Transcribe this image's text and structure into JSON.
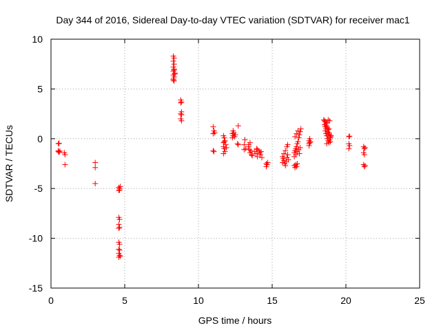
{
  "chart_data": {
    "type": "scatter",
    "title": "Day 344 of 2016, Sidereal Day-to-day VTEC variation (SDTVAR) for receiver mac1",
    "xlabel": "GPS time / hours",
    "ylabel": "SDTVAR / TECUs",
    "xlim": [
      0,
      25
    ],
    "ylim": [
      -15,
      10
    ],
    "xticks": [
      0,
      5,
      10,
      15,
      20,
      25
    ],
    "yticks": [
      -15,
      -10,
      -5,
      0,
      5,
      10
    ],
    "xtick_labels": [
      "0",
      "5",
      "10",
      "15",
      "20",
      "25"
    ],
    "ytick_labels": [
      "-15",
      "-10",
      "-5",
      "0",
      "5",
      "10"
    ],
    "grid": true,
    "marker": "plus",
    "color": "#ff0000",
    "series": [
      {
        "name": "SDTVAR",
        "points": [
          [
            0.5,
            -0.5
          ],
          [
            0.55,
            -0.45
          ],
          [
            0.5,
            -1.2
          ],
          [
            0.55,
            -1.35
          ],
          [
            0.5,
            -1.3
          ],
          [
            0.6,
            -1.25
          ],
          [
            0.9,
            -1.4
          ],
          [
            0.95,
            -1.6
          ],
          [
            0.95,
            -2.6
          ],
          [
            3.0,
            -2.4
          ],
          [
            3.0,
            -2.9
          ],
          [
            3.0,
            -4.5
          ],
          [
            4.6,
            -4.9
          ],
          [
            4.65,
            -5.0
          ],
          [
            4.6,
            -5.2
          ],
          [
            4.7,
            -4.8
          ],
          [
            4.65,
            -5.15
          ],
          [
            4.6,
            -7.9
          ],
          [
            4.65,
            -8.1
          ],
          [
            4.6,
            -8.6
          ],
          [
            4.65,
            -8.9
          ],
          [
            4.6,
            -9.0
          ],
          [
            4.6,
            -10.4
          ],
          [
            4.65,
            -10.6
          ],
          [
            4.6,
            -11.1
          ],
          [
            4.65,
            -11.2
          ],
          [
            4.6,
            -11.5
          ],
          [
            4.65,
            -11.7
          ],
          [
            4.7,
            -11.8
          ],
          [
            4.6,
            -11.9
          ],
          [
            8.3,
            8.3
          ],
          [
            8.35,
            8.1
          ],
          [
            8.3,
            7.8
          ],
          [
            8.35,
            7.5
          ],
          [
            8.3,
            7.2
          ],
          [
            8.35,
            7.0
          ],
          [
            8.3,
            6.8
          ],
          [
            8.4,
            6.6
          ],
          [
            8.3,
            6.4
          ],
          [
            8.35,
            6.2
          ],
          [
            8.3,
            6.0
          ],
          [
            8.35,
            5.8
          ],
          [
            8.4,
            6.5
          ],
          [
            8.3,
            5.9
          ],
          [
            8.35,
            6.9
          ],
          [
            8.8,
            3.9
          ],
          [
            8.85,
            3.7
          ],
          [
            8.8,
            3.6
          ],
          [
            8.85,
            2.7
          ],
          [
            8.8,
            2.5
          ],
          [
            8.85,
            2.4
          ],
          [
            8.8,
            2.0
          ],
          [
            8.85,
            1.8
          ],
          [
            11.0,
            1.2
          ],
          [
            11.05,
            0.8
          ],
          [
            11.0,
            0.5
          ],
          [
            11.1,
            0.6
          ],
          [
            11.0,
            -1.2
          ],
          [
            11.05,
            -1.3
          ],
          [
            11.7,
            0.3
          ],
          [
            11.75,
            0.1
          ],
          [
            11.8,
            -0.2
          ],
          [
            11.7,
            -0.4
          ],
          [
            11.85,
            -0.6
          ],
          [
            11.7,
            -0.8
          ],
          [
            11.75,
            -1.0
          ],
          [
            11.8,
            -1.3
          ],
          [
            11.7,
            -1.5
          ],
          [
            11.9,
            -0.9
          ],
          [
            11.75,
            -0.3
          ],
          [
            12.3,
            0.5
          ],
          [
            12.35,
            0.3
          ],
          [
            12.4,
            0.6
          ],
          [
            12.3,
            0.1
          ],
          [
            12.45,
            0.2
          ],
          [
            12.35,
            0.8
          ],
          [
            12.5,
            0.4
          ],
          [
            12.7,
            1.3
          ],
          [
            12.65,
            -0.5
          ],
          [
            12.7,
            -0.6
          ],
          [
            13.1,
            -0.6
          ],
          [
            13.15,
            -0.1
          ],
          [
            13.2,
            -1.0
          ],
          [
            13.1,
            -1.1
          ],
          [
            13.4,
            -0.8
          ],
          [
            13.45,
            -1.1
          ],
          [
            13.5,
            -1.4
          ],
          [
            13.6,
            -1.6
          ],
          [
            13.55,
            -1.2
          ],
          [
            13.4,
            -0.6
          ],
          [
            13.5,
            -0.4
          ],
          [
            13.65,
            -1.7
          ],
          [
            13.8,
            -1.3
          ],
          [
            13.9,
            -1.5
          ],
          [
            14.0,
            -1.8
          ],
          [
            14.1,
            -1.2
          ],
          [
            14.2,
            -1.6
          ],
          [
            14.3,
            -1.9
          ],
          [
            14.0,
            -1.1
          ],
          [
            14.15,
            -1.4
          ],
          [
            14.25,
            -1.3
          ],
          [
            13.95,
            -1.0
          ],
          [
            14.6,
            -2.5
          ],
          [
            14.65,
            -2.6
          ],
          [
            14.6,
            -2.8
          ],
          [
            14.7,
            -2.4
          ],
          [
            15.7,
            -1.8
          ],
          [
            15.75,
            -2.0
          ],
          [
            15.8,
            -2.2
          ],
          [
            15.85,
            -2.5
          ],
          [
            15.9,
            -2.7
          ],
          [
            15.95,
            -2.3
          ],
          [
            16.0,
            -1.9
          ],
          [
            16.05,
            -1.6
          ],
          [
            15.7,
            -2.4
          ],
          [
            15.8,
            -1.5
          ],
          [
            16.1,
            -2.1
          ],
          [
            16.0,
            -0.8
          ],
          [
            16.05,
            -0.6
          ],
          [
            15.9,
            -1.2
          ],
          [
            16.5,
            -2.7
          ],
          [
            16.55,
            -2.9
          ],
          [
            16.6,
            -2.6
          ],
          [
            16.7,
            -2.5
          ],
          [
            16.65,
            -2.8
          ],
          [
            16.5,
            -1.4
          ],
          [
            16.55,
            -1.2
          ],
          [
            16.6,
            -1.0
          ],
          [
            16.65,
            -0.8
          ],
          [
            16.7,
            -0.5
          ],
          [
            16.75,
            -0.3
          ],
          [
            16.8,
            0.1
          ],
          [
            16.85,
            0.4
          ],
          [
            16.9,
            0.7
          ],
          [
            16.95,
            1.0
          ],
          [
            16.5,
            -1.8
          ],
          [
            16.6,
            -1.6
          ],
          [
            16.7,
            -1.3
          ],
          [
            16.8,
            -1.1
          ],
          [
            16.9,
            -0.9
          ],
          [
            16.55,
            0.2
          ],
          [
            16.65,
            0.5
          ],
          [
            16.75,
            0.8
          ],
          [
            16.85,
            -1.5
          ],
          [
            17.5,
            -0.2
          ],
          [
            17.55,
            -0.4
          ],
          [
            17.5,
            -0.5
          ],
          [
            17.6,
            -0.3
          ],
          [
            17.55,
            0.0
          ],
          [
            17.5,
            -0.7
          ],
          [
            18.5,
            1.9
          ],
          [
            18.55,
            1.8
          ],
          [
            18.6,
            1.7
          ],
          [
            18.65,
            1.5
          ],
          [
            18.7,
            1.3
          ],
          [
            18.75,
            1.1
          ],
          [
            18.8,
            0.9
          ],
          [
            18.85,
            0.6
          ],
          [
            18.9,
            0.4
          ],
          [
            18.95,
            0.2
          ],
          [
            18.6,
            0.8
          ],
          [
            18.65,
            0.5
          ],
          [
            18.7,
            0.3
          ],
          [
            18.75,
            0.0
          ],
          [
            18.8,
            -0.2
          ],
          [
            18.85,
            -0.4
          ],
          [
            18.9,
            -0.1
          ],
          [
            18.95,
            0.1
          ],
          [
            18.6,
            1.2
          ],
          [
            18.7,
            1.6
          ],
          [
            18.8,
            1.9
          ],
          [
            18.9,
            1.8
          ],
          [
            18.55,
            1.4
          ],
          [
            18.75,
            0.7
          ],
          [
            18.85,
            1.0
          ],
          [
            18.95,
            -0.3
          ],
          [
            19.0,
            0.3
          ],
          [
            18.65,
            1.0
          ],
          [
            18.7,
            -0.5
          ],
          [
            18.8,
            0.4
          ],
          [
            20.2,
            0.2
          ],
          [
            20.25,
            0.25
          ],
          [
            20.2,
            -0.5
          ],
          [
            20.25,
            -0.7
          ],
          [
            20.2,
            -1.0
          ],
          [
            21.2,
            -0.8
          ],
          [
            21.25,
            -1.0
          ],
          [
            21.3,
            -0.9
          ],
          [
            21.2,
            -1.4
          ],
          [
            21.25,
            -1.6
          ],
          [
            21.2,
            -2.6
          ],
          [
            21.25,
            -2.8
          ],
          [
            21.3,
            -2.7
          ]
        ]
      }
    ]
  }
}
